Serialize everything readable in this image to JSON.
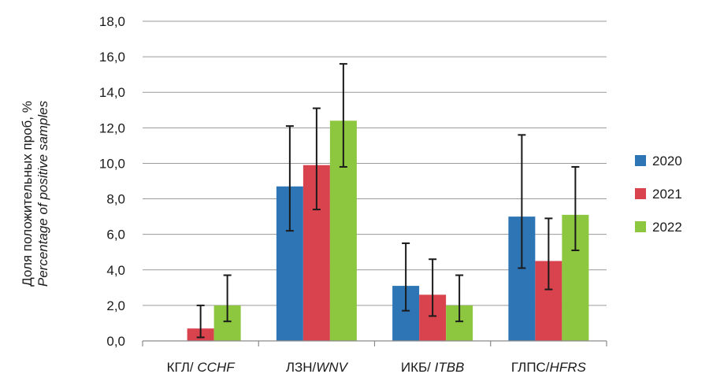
{
  "chart_data": {
    "type": "bar",
    "categories": [
      {
        "ru": "КГЛ/ ",
        "en": "CCHF"
      },
      {
        "ru": "ЛЗН/",
        "en": "WNV"
      },
      {
        "ru": "ИКБ/ ",
        "en": "ITBB"
      },
      {
        "ru": "ГЛПС/",
        "en": "HFRS"
      }
    ],
    "series": [
      {
        "name": "2020",
        "color": "#2e75b6",
        "values": [
          null,
          8.7,
          3.1,
          7.0
        ],
        "err_low": [
          null,
          6.2,
          1.7,
          4.1
        ],
        "err_high": [
          null,
          12.1,
          5.5,
          11.6
        ]
      },
      {
        "name": "2021",
        "color": "#d9434e",
        "values": [
          0.7,
          9.9,
          2.6,
          4.5
        ],
        "err_low": [
          0.2,
          7.4,
          1.4,
          2.9
        ],
        "err_high": [
          2.0,
          13.1,
          4.6,
          6.9
        ]
      },
      {
        "name": "2022",
        "color": "#8dc63f",
        "values": [
          2.0,
          12.4,
          2.0,
          7.1
        ],
        "err_low": [
          1.1,
          9.8,
          1.1,
          5.1
        ],
        "err_high": [
          3.7,
          15.6,
          3.7,
          9.8
        ]
      }
    ],
    "ylabel": "Доля положительных проб, %",
    "ylabel_en": "Percentage of positive samples",
    "ylim": [
      0,
      18
    ],
    "yticks": [
      "0,0",
      "2,0",
      "4,0",
      "6,0",
      "8,0",
      "10,0",
      "12,0",
      "14,0",
      "16,0",
      "18,0"
    ],
    "grid": true,
    "legend": "right"
  }
}
